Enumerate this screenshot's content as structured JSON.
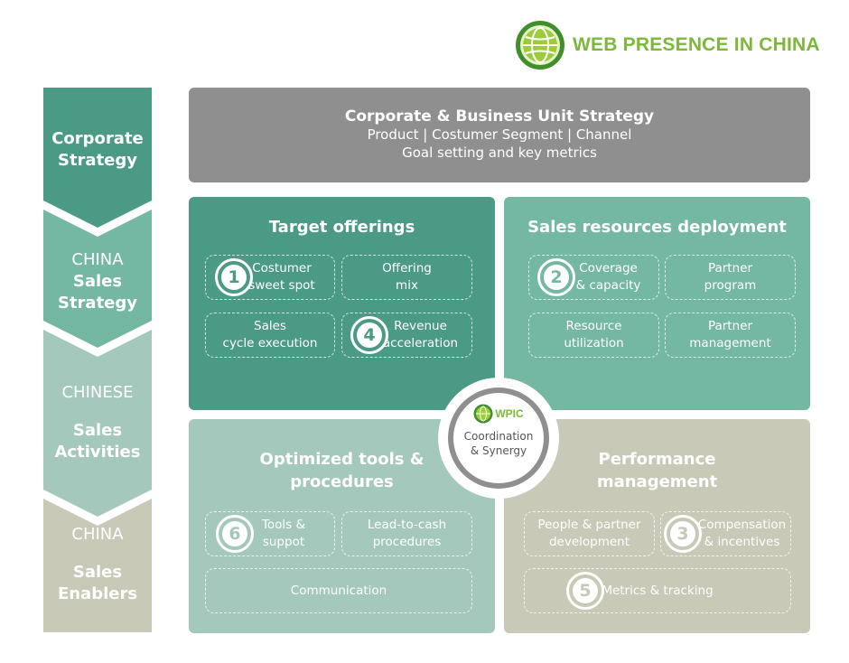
{
  "logo": {
    "text": "WEB PRESENCE IN CHINA"
  },
  "sidebar": {
    "stages": [
      {
        "line1": "Corporate",
        "line2": "Strategy",
        "color": "#4b9a85"
      },
      {
        "line1": "CHINA",
        "line2": "Sales",
        "line3": "Strategy",
        "color": "#74b8a4"
      },
      {
        "line1": "CHINESE",
        "line2": "Sales",
        "line3": "Activities",
        "color": "#a5c8bc"
      },
      {
        "line1": "CHINA",
        "line2": "Sales",
        "line3": "Enablers",
        "color": "#c8c9b6"
      }
    ]
  },
  "banner": {
    "title": "Corporate & Business Unit Strategy",
    "line1": "Product | Costumer Segment | Channel",
    "line2": "Goal setting and key metrics",
    "color": "#8f8f8f"
  },
  "quadrants": {
    "target": {
      "title": "Target offerings",
      "color": "#4b9a85",
      "boxes": {
        "b1": {
          "line1": "Costumer",
          "line2": "sweet spot",
          "number": "1"
        },
        "b2": {
          "line1": "Offering",
          "line2": "mix"
        },
        "b3": {
          "line1": "Sales",
          "line2": "cycle execution"
        },
        "b4": {
          "line1": "Revenue",
          "line2": "acceleration",
          "number": "4"
        }
      }
    },
    "resources": {
      "title": "Sales resources deployment",
      "color": "#74b8a4",
      "boxes": {
        "b1": {
          "line1": "Coverage",
          "line2": "& capacity",
          "number": "2"
        },
        "b2": {
          "line1": "Partner",
          "line2": "program"
        },
        "b3": {
          "line1": "Resource",
          "line2": "utilization"
        },
        "b4": {
          "line1": "Partner",
          "line2": "management"
        }
      }
    },
    "tools": {
      "title_line1": "Optimized tools &",
      "title_line2": "procedures",
      "color": "#a5c8bc",
      "boxes": {
        "b1": {
          "line1": "Tools &",
          "line2": "suppot",
          "number": "6"
        },
        "b2": {
          "line1": "Lead-to-cash",
          "line2": "procedures"
        },
        "b3": {
          "line1": "Communication"
        }
      }
    },
    "performance": {
      "title_line1": "Performance",
      "title_line2": "management",
      "color": "#c8c9b6",
      "boxes": {
        "b1": {
          "line1": "People & partner",
          "line2": "development"
        },
        "b2": {
          "line1": "Compensation",
          "line2": "& incentives",
          "number": "3"
        },
        "b3": {
          "line1": "Metrics & tracking",
          "number": "5"
        }
      }
    }
  },
  "center": {
    "logo_text": "WPIC",
    "line1": "Coordination",
    "line2": "& Synergy"
  },
  "icons": {
    "globe": "globe-icon"
  }
}
